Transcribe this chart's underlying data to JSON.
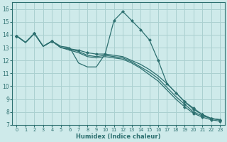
{
  "background_color": "#ceeaea",
  "grid_color": "#aad0d0",
  "line_color": "#2d7070",
  "xlabel": "Humidex (Indice chaleur)",
  "xlim": [
    -0.5,
    23.5
  ],
  "ylim": [
    7,
    16.5
  ],
  "xticks": [
    0,
    1,
    2,
    3,
    4,
    5,
    6,
    7,
    8,
    9,
    10,
    11,
    12,
    13,
    14,
    15,
    16,
    17,
    18,
    19,
    20,
    21,
    22,
    23
  ],
  "yticks": [
    7,
    8,
    9,
    10,
    11,
    12,
    13,
    14,
    15,
    16
  ],
  "line1_x": [
    0,
    1,
    2,
    3,
    4,
    5,
    6,
    7,
    8,
    9,
    10,
    11,
    12,
    13,
    14,
    15,
    16,
    17,
    18,
    19,
    20,
    21,
    22,
    23
  ],
  "line1_y": [
    13.9,
    13.4,
    14.1,
    13.1,
    13.5,
    13.1,
    13.0,
    11.8,
    11.5,
    11.5,
    12.5,
    15.1,
    15.8,
    15.1,
    14.4,
    13.6,
    12.0,
    10.2,
    9.5,
    8.8,
    8.3,
    7.8,
    7.5,
    7.4
  ],
  "line1_mx": [
    0,
    2,
    4,
    10,
    11,
    12,
    13,
    14,
    15,
    16,
    17,
    18,
    19,
    20,
    21,
    22,
    23
  ],
  "line1_my": [
    13.9,
    14.1,
    13.5,
    12.5,
    15.1,
    15.8,
    15.1,
    14.4,
    13.6,
    12.0,
    10.2,
    9.5,
    8.8,
    8.3,
    7.8,
    7.5,
    7.4
  ],
  "line2_x": [
    0,
    1,
    2,
    3,
    4,
    5,
    6,
    7,
    8,
    9,
    10,
    11,
    12,
    13,
    14,
    15,
    16,
    17,
    18,
    19,
    20,
    21,
    22,
    23
  ],
  "line2_y": [
    13.9,
    13.4,
    14.1,
    13.1,
    13.5,
    13.0,
    12.9,
    12.8,
    12.6,
    12.5,
    12.5,
    12.4,
    12.3,
    12.0,
    11.7,
    11.3,
    10.8,
    10.2,
    9.5,
    8.8,
    8.2,
    7.8,
    7.5,
    7.4
  ],
  "line2_mx": [
    0,
    2,
    4,
    6,
    7,
    8,
    9,
    19,
    20,
    21,
    22,
    23
  ],
  "line2_my": [
    13.9,
    14.1,
    13.5,
    12.9,
    12.8,
    12.6,
    12.5,
    8.8,
    8.2,
    7.8,
    7.5,
    7.4
  ],
  "line3_x": [
    0,
    1,
    2,
    3,
    4,
    5,
    6,
    7,
    8,
    9,
    10,
    11,
    12,
    13,
    14,
    15,
    16,
    17,
    18,
    19,
    20,
    21,
    22,
    23
  ],
  "line3_y": [
    13.9,
    13.4,
    14.1,
    13.1,
    13.5,
    13.0,
    12.9,
    12.7,
    12.4,
    12.3,
    12.4,
    12.3,
    12.2,
    11.9,
    11.5,
    11.1,
    10.6,
    9.9,
    9.2,
    8.6,
    8.0,
    7.7,
    7.5,
    7.4
  ],
  "line3_mx": [
    0,
    2,
    4,
    19,
    20,
    21,
    22,
    23
  ],
  "line3_my": [
    13.9,
    14.1,
    13.5,
    8.6,
    8.0,
    7.7,
    7.5,
    7.4
  ],
  "line4_x": [
    0,
    1,
    2,
    3,
    4,
    5,
    6,
    7,
    8,
    9,
    10,
    11,
    12,
    13,
    14,
    15,
    16,
    17,
    18,
    19,
    20,
    21,
    22,
    23
  ],
  "line4_y": [
    13.9,
    13.4,
    14.1,
    13.1,
    13.5,
    13.0,
    12.8,
    12.6,
    12.3,
    12.2,
    12.3,
    12.2,
    12.1,
    11.8,
    11.4,
    10.9,
    10.4,
    9.7,
    9.0,
    8.4,
    7.9,
    7.6,
    7.4,
    7.3
  ],
  "line4_mx": [
    0,
    2,
    4,
    19,
    20,
    21,
    22,
    23
  ],
  "line4_my": [
    13.9,
    14.1,
    13.5,
    8.4,
    7.9,
    7.6,
    7.4,
    7.3
  ]
}
